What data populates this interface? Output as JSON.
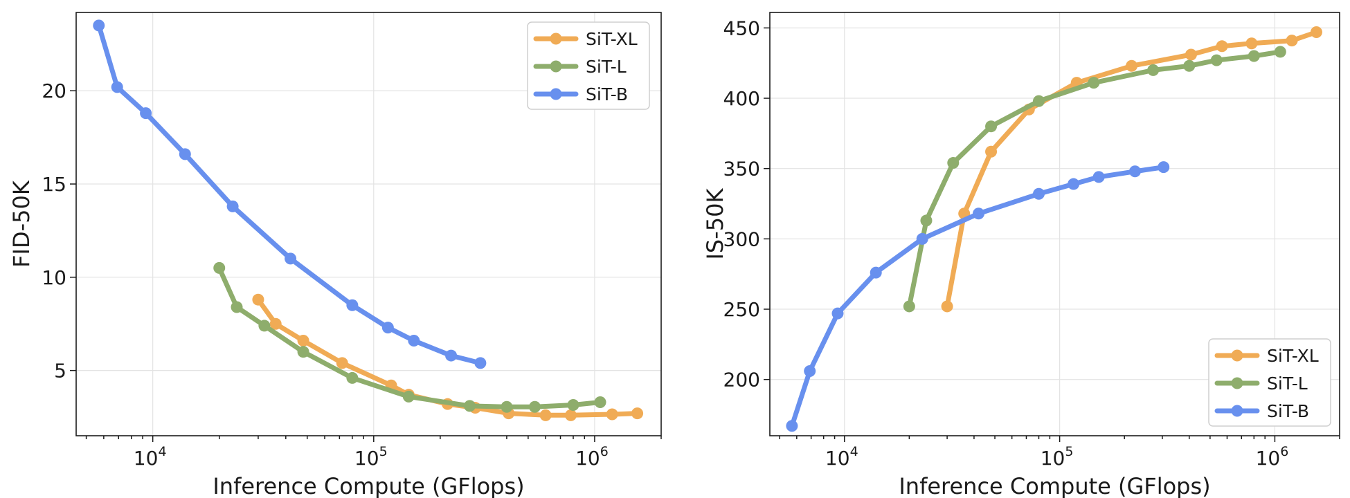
{
  "chart_data": [
    {
      "type": "line",
      "title": "",
      "xlabel": "Inference Compute (GFlops)",
      "ylabel": "FID-50K",
      "xscale": "log",
      "xlim": [
        4500,
        2000000
      ],
      "ylim": [
        1.5,
        24.2
      ],
      "xticks": [
        {
          "value": 10000,
          "base": "10",
          "exp": "4"
        },
        {
          "value": 100000,
          "base": "10",
          "exp": "5"
        },
        {
          "value": 1000000,
          "base": "10",
          "exp": "6"
        }
      ],
      "yticks": [
        5,
        10,
        15,
        20
      ],
      "grid": true,
      "legend_position": "top-right",
      "series": [
        {
          "name": "SiT-XL",
          "color": "#F0AB55",
          "x": [
            30000,
            36000,
            48000,
            72000,
            120000,
            144000,
            216000,
            288000,
            408000,
            600000,
            780000,
            1200000,
            1560000
          ],
          "y": [
            8.8,
            7.5,
            6.6,
            5.4,
            4.2,
            3.7,
            3.2,
            3.0,
            2.7,
            2.6,
            2.6,
            2.65,
            2.7
          ]
        },
        {
          "name": "SiT-L",
          "color": "#8EAD6C",
          "x": [
            20000,
            24000,
            32000,
            48000,
            80000,
            144000,
            272000,
            400000,
            536000,
            800000,
            1060000
          ],
          "y": [
            10.5,
            8.4,
            7.4,
            6.0,
            4.6,
            3.6,
            3.1,
            3.05,
            3.05,
            3.15,
            3.3
          ]
        },
        {
          "name": "SiT-B",
          "color": "#6890EE",
          "x": [
            5700,
            6900,
            9300,
            14000,
            23000,
            42000,
            80000,
            116000,
            152000,
            224000,
            304000
          ],
          "y": [
            23.5,
            20.2,
            18.8,
            16.6,
            13.8,
            11.0,
            8.5,
            7.3,
            6.6,
            5.8,
            5.4
          ]
        }
      ]
    },
    {
      "type": "line",
      "title": "",
      "xlabel": "Inference Compute (GFlops)",
      "ylabel": "IS-50K",
      "xscale": "log",
      "xlim": [
        4500,
        2000000
      ],
      "ylim": [
        160,
        461
      ],
      "xticks": [
        {
          "value": 10000,
          "base": "10",
          "exp": "4"
        },
        {
          "value": 100000,
          "base": "10",
          "exp": "5"
        },
        {
          "value": 1000000,
          "base": "10",
          "exp": "6"
        }
      ],
      "yticks": [
        200,
        250,
        300,
        350,
        400,
        450
      ],
      "grid": true,
      "legend_position": "bottom-right",
      "series": [
        {
          "name": "SiT-XL",
          "color": "#F0AB55",
          "x": [
            30000,
            36000,
            48000,
            72000,
            120000,
            216000,
            408000,
            568000,
            780000,
            1200000,
            1560000
          ],
          "y": [
            252,
            318,
            362,
            392,
            411,
            423,
            431,
            437,
            439,
            441,
            447
          ]
        },
        {
          "name": "SiT-L",
          "color": "#8EAD6C",
          "x": [
            20000,
            24000,
            32000,
            48000,
            80000,
            144000,
            272000,
            400000,
            536000,
            800000,
            1060000
          ],
          "y": [
            252,
            313,
            354,
            380,
            398,
            411,
            420,
            423,
            427,
            430,
            433
          ]
        },
        {
          "name": "SiT-B",
          "color": "#6890EE",
          "x": [
            5700,
            6900,
            9300,
            14000,
            23000,
            42000,
            80000,
            116000,
            152000,
            224000,
            304000
          ],
          "y": [
            167,
            206,
            247,
            276,
            300,
            318,
            332,
            339,
            344,
            348,
            351
          ]
        }
      ]
    }
  ]
}
